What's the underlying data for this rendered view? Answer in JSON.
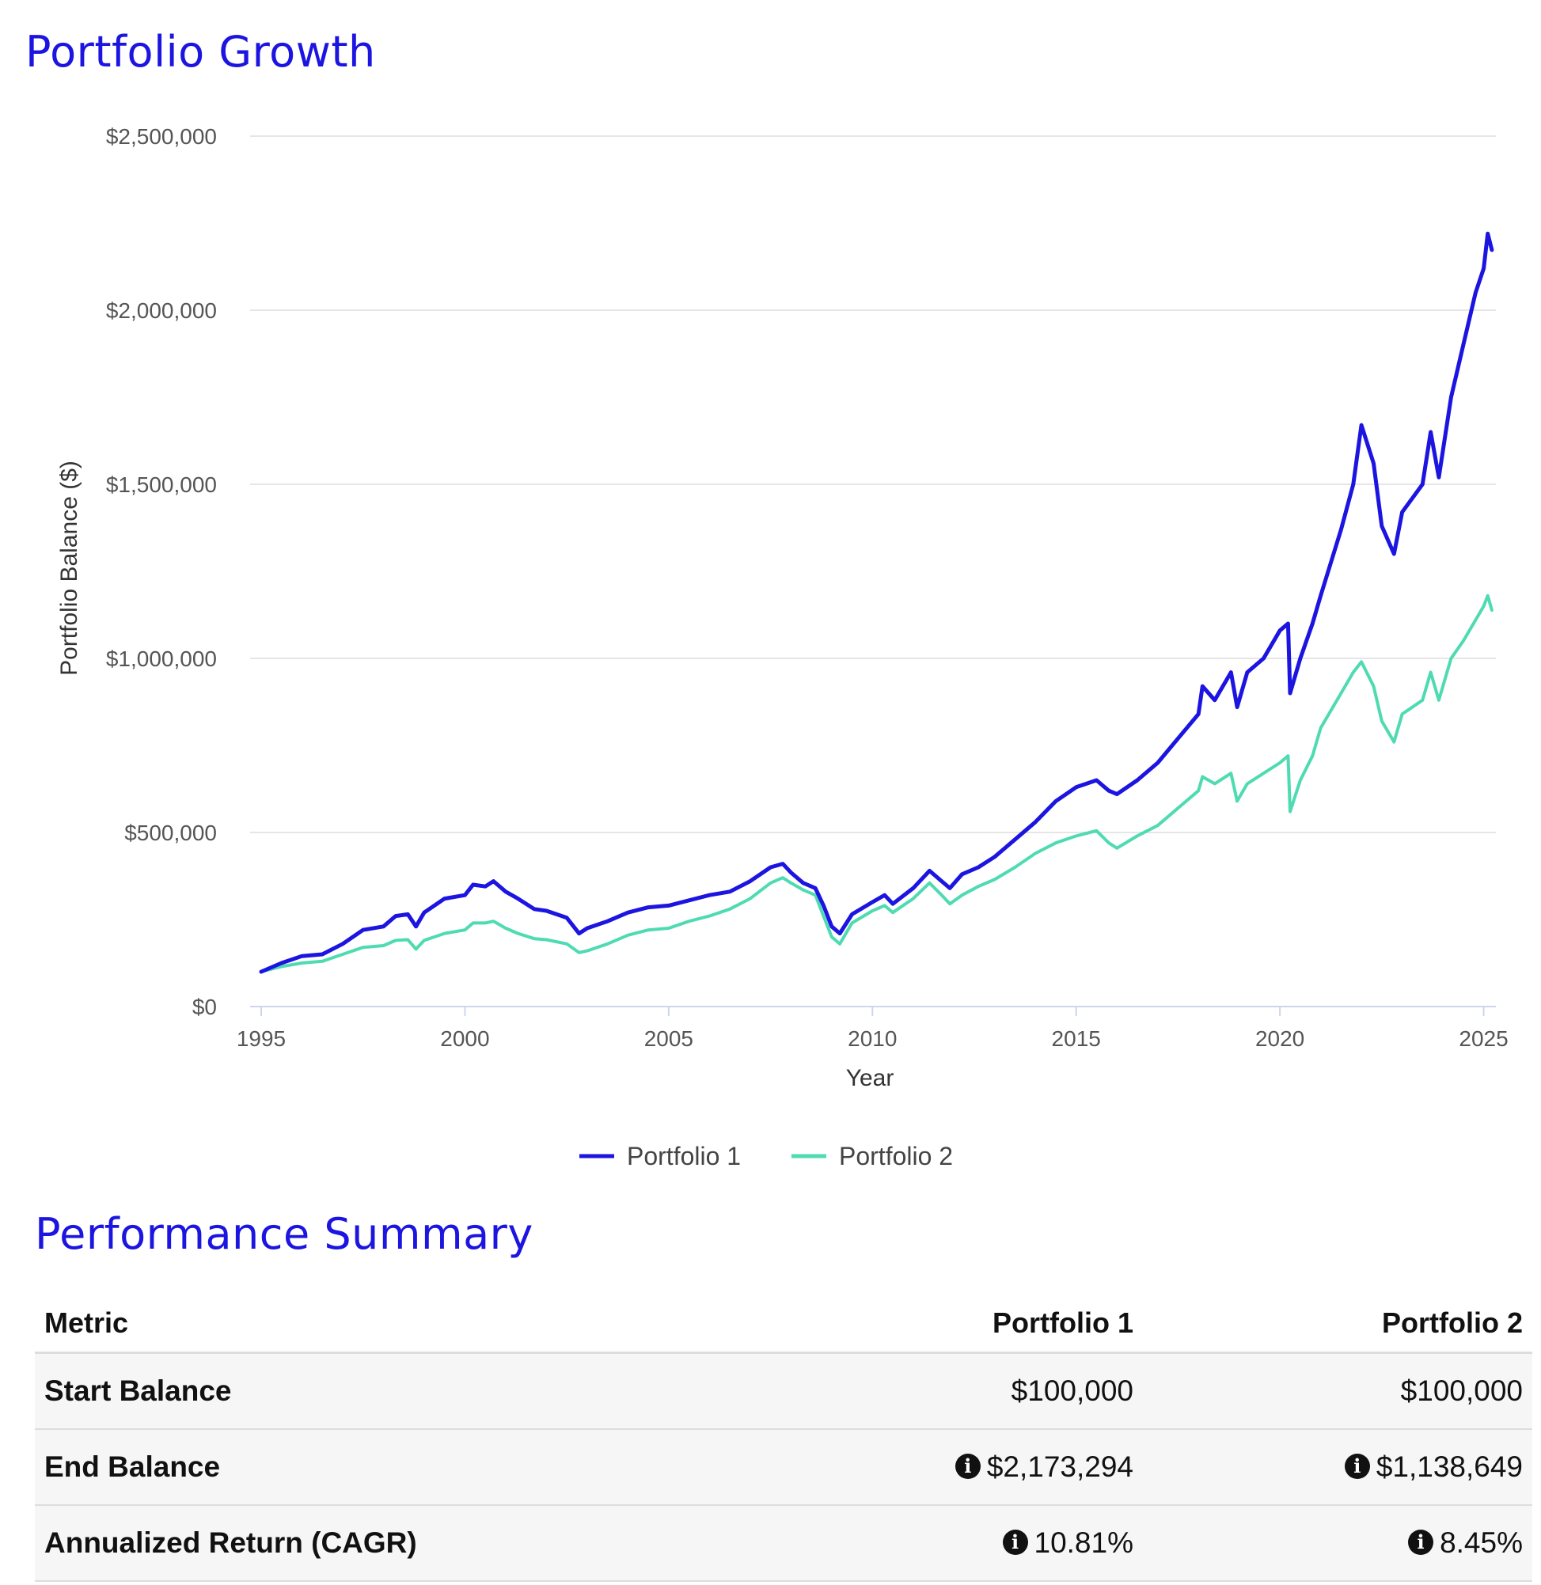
{
  "chart_title": "Portfolio Growth",
  "summary_title": "Performance Summary",
  "chart_data": {
    "type": "line",
    "title": "Portfolio Growth",
    "xlabel": "Year",
    "ylabel": "Portfolio Balance ($)",
    "xlim": [
      1995,
      2025.3
    ],
    "ylim": [
      0,
      2500000
    ],
    "x_ticks": [
      1995,
      2000,
      2005,
      2010,
      2015,
      2020,
      2025
    ],
    "x_tick_labels": [
      "1995",
      "2000",
      "2005",
      "2010",
      "2015",
      "2020",
      "2025"
    ],
    "y_ticks": [
      0,
      500000,
      1000000,
      1500000,
      2000000,
      2500000
    ],
    "y_tick_labels": [
      "$0",
      "$500,000",
      "$1,000,000",
      "$1,500,000",
      "$2,000,000",
      "$2,500,000"
    ],
    "grid": true,
    "legend_position": "bottom-center",
    "series": [
      {
        "name": "Portfolio 1",
        "color": "#1c14e0",
        "points": [
          [
            1995.0,
            100000
          ],
          [
            1995.5,
            125000
          ],
          [
            1996.0,
            145000
          ],
          [
            1996.5,
            150000
          ],
          [
            1997.0,
            180000
          ],
          [
            1997.5,
            220000
          ],
          [
            1998.0,
            230000
          ],
          [
            1998.3,
            260000
          ],
          [
            1998.6,
            265000
          ],
          [
            1998.8,
            230000
          ],
          [
            1999.0,
            270000
          ],
          [
            1999.5,
            310000
          ],
          [
            2000.0,
            320000
          ],
          [
            2000.2,
            350000
          ],
          [
            2000.5,
            345000
          ],
          [
            2000.7,
            360000
          ],
          [
            2001.0,
            330000
          ],
          [
            2001.3,
            310000
          ],
          [
            2001.7,
            280000
          ],
          [
            2002.0,
            275000
          ],
          [
            2002.5,
            255000
          ],
          [
            2002.8,
            210000
          ],
          [
            2003.0,
            225000
          ],
          [
            2003.5,
            245000
          ],
          [
            2004.0,
            270000
          ],
          [
            2004.5,
            285000
          ],
          [
            2005.0,
            290000
          ],
          [
            2005.5,
            305000
          ],
          [
            2006.0,
            320000
          ],
          [
            2006.5,
            330000
          ],
          [
            2007.0,
            360000
          ],
          [
            2007.5,
            400000
          ],
          [
            2007.8,
            410000
          ],
          [
            2008.0,
            385000
          ],
          [
            2008.3,
            355000
          ],
          [
            2008.6,
            340000
          ],
          [
            2008.8,
            290000
          ],
          [
            2009.0,
            230000
          ],
          [
            2009.2,
            210000
          ],
          [
            2009.5,
            265000
          ],
          [
            2010.0,
            300000
          ],
          [
            2010.3,
            320000
          ],
          [
            2010.5,
            295000
          ],
          [
            2011.0,
            340000
          ],
          [
            2011.4,
            390000
          ],
          [
            2011.7,
            360000
          ],
          [
            2011.9,
            340000
          ],
          [
            2012.2,
            380000
          ],
          [
            2012.6,
            400000
          ],
          [
            2013.0,
            430000
          ],
          [
            2013.5,
            480000
          ],
          [
            2014.0,
            530000
          ],
          [
            2014.5,
            590000
          ],
          [
            2015.0,
            630000
          ],
          [
            2015.5,
            650000
          ],
          [
            2015.8,
            620000
          ],
          [
            2016.0,
            610000
          ],
          [
            2016.5,
            650000
          ],
          [
            2017.0,
            700000
          ],
          [
            2017.5,
            770000
          ],
          [
            2018.0,
            840000
          ],
          [
            2018.1,
            920000
          ],
          [
            2018.4,
            880000
          ],
          [
            2018.8,
            960000
          ],
          [
            2018.95,
            860000
          ],
          [
            2019.2,
            960000
          ],
          [
            2019.6,
            1000000
          ],
          [
            2020.0,
            1080000
          ],
          [
            2020.2,
            1100000
          ],
          [
            2020.25,
            900000
          ],
          [
            2020.5,
            1000000
          ],
          [
            2020.8,
            1100000
          ],
          [
            2021.0,
            1180000
          ],
          [
            2021.5,
            1370000
          ],
          [
            2021.8,
            1500000
          ],
          [
            2022.0,
            1670000
          ],
          [
            2022.3,
            1560000
          ],
          [
            2022.5,
            1380000
          ],
          [
            2022.8,
            1300000
          ],
          [
            2023.0,
            1420000
          ],
          [
            2023.5,
            1500000
          ],
          [
            2023.7,
            1650000
          ],
          [
            2023.9,
            1520000
          ],
          [
            2024.2,
            1750000
          ],
          [
            2024.5,
            1900000
          ],
          [
            2024.8,
            2050000
          ],
          [
            2025.0,
            2120000
          ],
          [
            2025.1,
            2220000
          ],
          [
            2025.2,
            2173294
          ]
        ]
      },
      {
        "name": "Portfolio 2",
        "color": "#4fdbb1",
        "points": [
          [
            1995.0,
            100000
          ],
          [
            1995.5,
            115000
          ],
          [
            1996.0,
            125000
          ],
          [
            1996.5,
            130000
          ],
          [
            1997.0,
            150000
          ],
          [
            1997.5,
            170000
          ],
          [
            1998.0,
            175000
          ],
          [
            1998.3,
            190000
          ],
          [
            1998.6,
            192000
          ],
          [
            1998.8,
            165000
          ],
          [
            1999.0,
            190000
          ],
          [
            1999.5,
            210000
          ],
          [
            2000.0,
            220000
          ],
          [
            2000.2,
            240000
          ],
          [
            2000.5,
            240000
          ],
          [
            2000.7,
            245000
          ],
          [
            2001.0,
            225000
          ],
          [
            2001.3,
            210000
          ],
          [
            2001.7,
            195000
          ],
          [
            2002.0,
            192000
          ],
          [
            2002.5,
            180000
          ],
          [
            2002.8,
            155000
          ],
          [
            2003.0,
            160000
          ],
          [
            2003.5,
            180000
          ],
          [
            2004.0,
            205000
          ],
          [
            2004.5,
            220000
          ],
          [
            2005.0,
            225000
          ],
          [
            2005.5,
            245000
          ],
          [
            2006.0,
            260000
          ],
          [
            2006.5,
            280000
          ],
          [
            2007.0,
            310000
          ],
          [
            2007.5,
            355000
          ],
          [
            2007.8,
            370000
          ],
          [
            2008.0,
            355000
          ],
          [
            2008.3,
            335000
          ],
          [
            2008.6,
            320000
          ],
          [
            2008.8,
            260000
          ],
          [
            2009.0,
            200000
          ],
          [
            2009.2,
            180000
          ],
          [
            2009.5,
            240000
          ],
          [
            2010.0,
            275000
          ],
          [
            2010.3,
            290000
          ],
          [
            2010.5,
            270000
          ],
          [
            2011.0,
            310000
          ],
          [
            2011.4,
            355000
          ],
          [
            2011.7,
            320000
          ],
          [
            2011.9,
            295000
          ],
          [
            2012.2,
            320000
          ],
          [
            2012.6,
            345000
          ],
          [
            2013.0,
            365000
          ],
          [
            2013.5,
            400000
          ],
          [
            2014.0,
            440000
          ],
          [
            2014.5,
            470000
          ],
          [
            2015.0,
            490000
          ],
          [
            2015.5,
            505000
          ],
          [
            2015.8,
            470000
          ],
          [
            2016.0,
            455000
          ],
          [
            2016.5,
            490000
          ],
          [
            2017.0,
            520000
          ],
          [
            2017.5,
            570000
          ],
          [
            2018.0,
            620000
          ],
          [
            2018.1,
            660000
          ],
          [
            2018.4,
            640000
          ],
          [
            2018.8,
            670000
          ],
          [
            2018.95,
            590000
          ],
          [
            2019.2,
            640000
          ],
          [
            2019.6,
            670000
          ],
          [
            2020.0,
            700000
          ],
          [
            2020.2,
            720000
          ],
          [
            2020.25,
            560000
          ],
          [
            2020.5,
            650000
          ],
          [
            2020.8,
            720000
          ],
          [
            2021.0,
            800000
          ],
          [
            2021.5,
            900000
          ],
          [
            2021.8,
            960000
          ],
          [
            2022.0,
            990000
          ],
          [
            2022.3,
            920000
          ],
          [
            2022.5,
            820000
          ],
          [
            2022.8,
            760000
          ],
          [
            2023.0,
            840000
          ],
          [
            2023.5,
            880000
          ],
          [
            2023.7,
            960000
          ],
          [
            2023.9,
            880000
          ],
          [
            2024.2,
            1000000
          ],
          [
            2024.5,
            1050000
          ],
          [
            2024.8,
            1110000
          ],
          [
            2025.0,
            1150000
          ],
          [
            2025.1,
            1180000
          ],
          [
            2025.2,
            1138649
          ]
        ]
      }
    ]
  },
  "table": {
    "headers": [
      "Metric",
      "Portfolio 1",
      "Portfolio 2"
    ],
    "rows": [
      {
        "metric": "Start Balance",
        "p1": "$100,000",
        "p2": "$100,000",
        "info": false
      },
      {
        "metric": "End Balance",
        "p1": "$2,173,294",
        "p2": "$1,138,649",
        "info": true
      },
      {
        "metric": "Annualized Return (CAGR)",
        "p1": "10.81%",
        "p2": "8.45%",
        "info": true
      }
    ],
    "info_glyph": "i"
  },
  "colors": {
    "title": "#1c14e0",
    "series_1": "#1c14e0",
    "series_2": "#4fdbb1",
    "grid": "#e6e6e6",
    "row_bg": "#f6f6f6"
  }
}
